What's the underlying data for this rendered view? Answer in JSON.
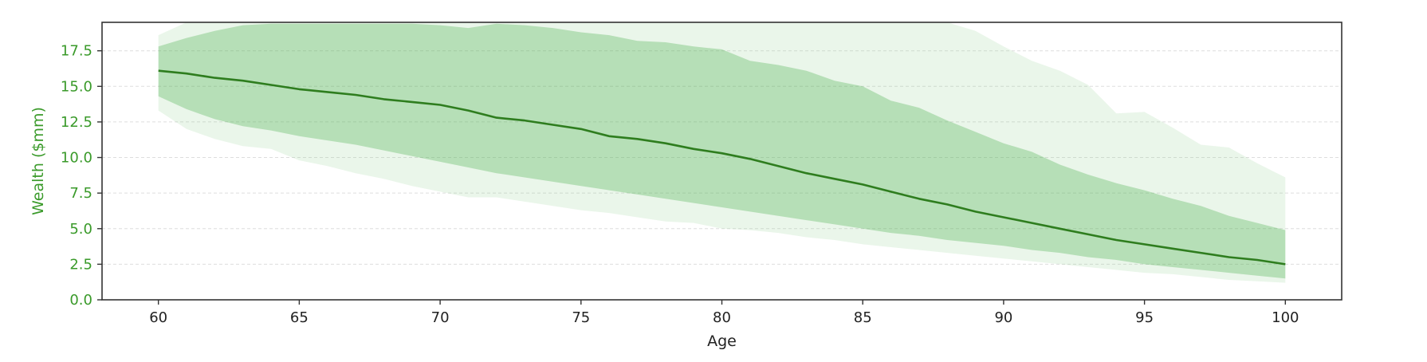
{
  "chart_data": {
    "type": "area",
    "xlabel": "Age",
    "ylabel": "Wealth ($mm)",
    "xlim": [
      58,
      102
    ],
    "ylim": [
      0,
      19.5
    ],
    "xticks": [
      60,
      65,
      70,
      75,
      80,
      85,
      90,
      95,
      100
    ],
    "yticks": [
      0.0,
      2.5,
      5.0,
      7.5,
      10.0,
      12.5,
      15.0,
      17.5
    ],
    "ytick_labels": [
      "0.0",
      "2.5",
      "5.0",
      "7.5",
      "10.0",
      "12.5",
      "15.0",
      "17.5"
    ],
    "xtick_labels": [
      "60",
      "65",
      "70",
      "75",
      "80",
      "85",
      "90",
      "95",
      "100"
    ],
    "grid": "horizontal-dashed",
    "colors": {
      "median_line": "#2e7d1e",
      "inner_band": "#4caf50",
      "outer_band": "#8fce8f",
      "y_axis_text": "#3a9a2a",
      "axis_text": "#222222",
      "spine": "#333333",
      "grid": "#dddddd"
    },
    "x": [
      60,
      61,
      62,
      63,
      64,
      65,
      66,
      67,
      68,
      69,
      70,
      71,
      72,
      73,
      74,
      75,
      76,
      77,
      78,
      79,
      80,
      81,
      82,
      83,
      84,
      85,
      86,
      87,
      88,
      89,
      90,
      91,
      92,
      93,
      94,
      95,
      96,
      97,
      98,
      99,
      100
    ],
    "series": [
      {
        "role": "median",
        "values": [
          16.1,
          15.9,
          15.6,
          15.4,
          15.1,
          14.8,
          14.6,
          14.4,
          14.1,
          13.9,
          13.7,
          13.3,
          12.8,
          12.6,
          12.3,
          12.0,
          11.5,
          11.3,
          11.0,
          10.6,
          10.3,
          9.9,
          9.4,
          8.9,
          8.5,
          8.1,
          7.6,
          7.1,
          6.7,
          6.2,
          5.8,
          5.4,
          5.0,
          4.6,
          4.2,
          3.9,
          3.6,
          3.3,
          3.0,
          2.8,
          2.5
        ]
      },
      {
        "role": "inner-band-lower",
        "values": [
          14.3,
          13.4,
          12.7,
          12.2,
          11.9,
          11.5,
          11.2,
          10.9,
          10.5,
          10.1,
          9.7,
          9.3,
          8.9,
          8.6,
          8.3,
          8.0,
          7.7,
          7.4,
          7.1,
          6.8,
          6.5,
          6.2,
          5.9,
          5.6,
          5.3,
          5.0,
          4.7,
          4.5,
          4.2,
          4.0,
          3.8,
          3.5,
          3.3,
          3.0,
          2.8,
          2.5,
          2.3,
          2.1,
          1.9,
          1.7,
          1.5
        ]
      },
      {
        "role": "inner-band-upper",
        "values": [
          17.8,
          18.4,
          18.9,
          19.3,
          19.4,
          19.4,
          19.4,
          19.4,
          19.4,
          19.4,
          19.3,
          19.1,
          19.4,
          19.3,
          19.1,
          18.8,
          18.6,
          18.2,
          18.1,
          17.8,
          17.6,
          16.8,
          16.5,
          16.1,
          15.4,
          15.0,
          14.0,
          13.5,
          12.6,
          11.8,
          11.0,
          10.4,
          9.5,
          8.8,
          8.2,
          7.7,
          7.1,
          6.6,
          5.9,
          5.4,
          4.9
        ]
      },
      {
        "role": "outer-band-lower",
        "values": [
          13.3,
          12.0,
          11.3,
          10.8,
          10.6,
          9.8,
          9.4,
          8.9,
          8.5,
          8.0,
          7.6,
          7.2,
          7.2,
          6.9,
          6.6,
          6.3,
          6.1,
          5.8,
          5.5,
          5.4,
          5.0,
          4.9,
          4.7,
          4.4,
          4.2,
          3.9,
          3.7,
          3.5,
          3.3,
          3.1,
          2.9,
          2.7,
          2.5,
          2.3,
          2.1,
          1.9,
          1.8,
          1.6,
          1.4,
          1.3,
          1.2
        ]
      },
      {
        "role": "outer-band-upper",
        "values": [
          18.6,
          19.5,
          19.5,
          19.5,
          19.5,
          19.5,
          19.5,
          19.5,
          19.5,
          19.5,
          19.5,
          19.5,
          19.5,
          19.5,
          19.5,
          19.5,
          19.5,
          19.5,
          19.5,
          19.5,
          19.5,
          19.5,
          19.5,
          19.5,
          19.5,
          19.5,
          19.5,
          19.5,
          19.5,
          18.9,
          17.8,
          16.8,
          16.1,
          15.1,
          13.1,
          13.2,
          12.1,
          10.9,
          10.7,
          9.6,
          8.6
        ]
      }
    ]
  }
}
